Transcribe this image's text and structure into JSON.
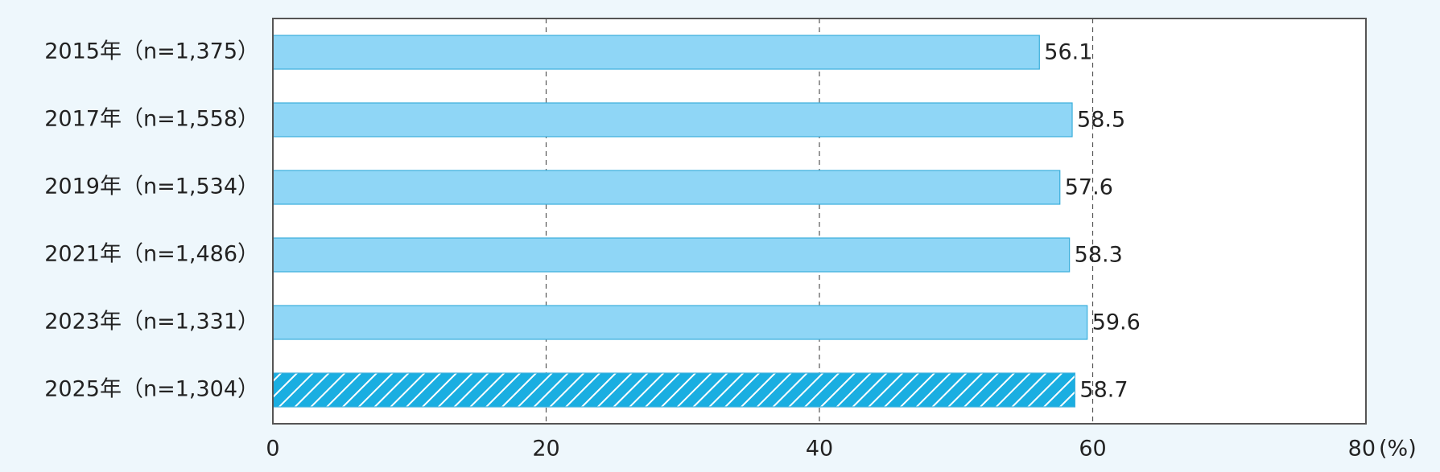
{
  "chart_data": {
    "type": "hbar",
    "categories": [
      "2015年（n=1,375）",
      "2017年（n=1,558）",
      "2019年（n=1,534）",
      "2021年（n=1,486）",
      "2023年（n=1,331）",
      "2025年（n=1,304）"
    ],
    "values": [
      56.1,
      58.5,
      57.6,
      58.3,
      59.6,
      58.7
    ],
    "patterns": [
      "solid",
      "solid",
      "solid",
      "solid",
      "solid",
      "hatch"
    ],
    "color": "#8fd6f6",
    "xlim": [
      0,
      80
    ],
    "xticks": [
      0,
      20,
      40,
      60,
      80
    ],
    "xlabel": "(%)",
    "grid": true
  }
}
